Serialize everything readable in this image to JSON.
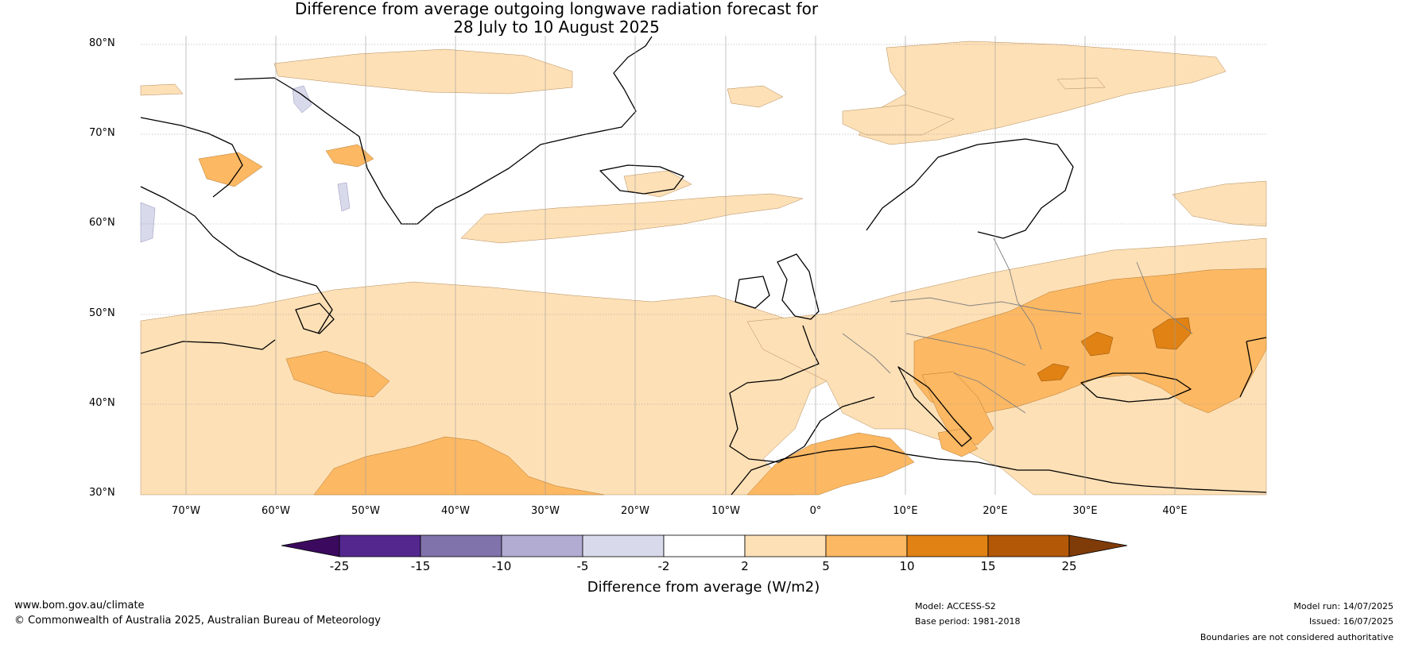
{
  "title": {
    "line1": "Difference from average outgoing longwave radiation forecast for",
    "line2": "28 July to 10 August 2025"
  },
  "axes": {
    "lat_labels": [
      "80°N",
      "70°N",
      "60°N",
      "50°N",
      "40°N",
      "30°N"
    ],
    "lon_labels": [
      "70°W",
      "60°W",
      "50°W",
      "40°W",
      "30°W",
      "20°W",
      "10°W",
      "0°",
      "10°E",
      "20°E",
      "30°E",
      "40°E"
    ]
  },
  "colorbar": {
    "ticks": [
      "-25",
      "-15",
      "-10",
      "-5",
      "-2",
      "2",
      "5",
      "10",
      "15",
      "25"
    ],
    "colors": [
      "#3b0a5e",
      "#54278f",
      "#8073ac",
      "#b2abd2",
      "#d8daeb",
      "#ffffff",
      "#fee0b6",
      "#fdb863",
      "#e08214",
      "#b35806",
      "#7f3b08"
    ],
    "label": "Difference from average (W/m2)"
  },
  "footer": {
    "website": "www.bom.gov.au/climate",
    "copyright": "© Commonwealth of Australia 2025, Australian Bureau of Meteorology",
    "model": "Model: ACCESS-S2",
    "base_period": "Base period: 1981-2018",
    "model_run": "Model run: 14/07/2025",
    "issued": "Issued: 16/07/2025",
    "disclaimer": "Boundaries are not considered authoritative"
  }
}
